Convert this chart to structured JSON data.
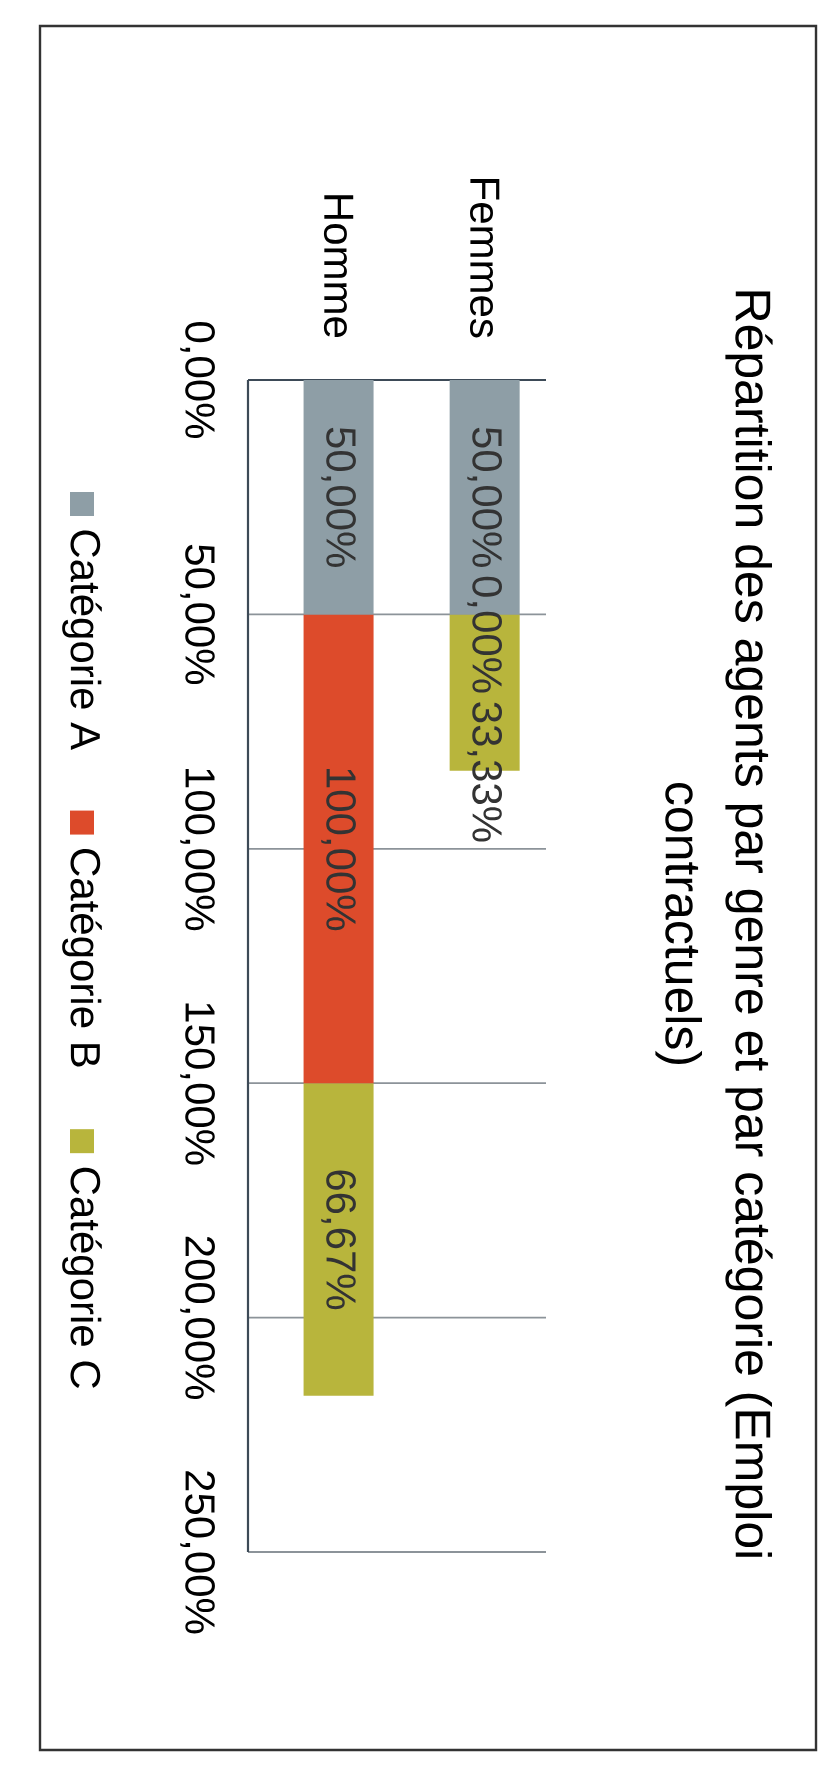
{
  "chart_data": {
    "type": "bar",
    "stacked": true,
    "title": "Répartition des agents par genre et par catégorie (Emploi contractuels)",
    "categories": [
      "Homme",
      "Femmes"
    ],
    "series": [
      {
        "name": "Catégorie A",
        "color": "#8e9ea6",
        "values": [
          50,
          50
        ],
        "value_labels": [
          "50,00%",
          "50,00%"
        ]
      },
      {
        "name": "Catégorie B",
        "color": "#dd4b2b",
        "values": [
          100,
          0
        ],
        "value_labels": [
          "100,00%",
          "0,00%"
        ]
      },
      {
        "name": "Catégorie C",
        "color": "#b8b53c",
        "values": [
          66.67,
          33.33
        ],
        "value_labels": [
          "66,67%",
          "33,33%"
        ]
      }
    ],
    "ylim": [
      250,
      0
    ],
    "yticks": [
      {
        "value": 0,
        "label": "0,00%"
      },
      {
        "value": 50,
        "label": "50,00%"
      },
      {
        "value": 100,
        "label": "100,00%"
      },
      {
        "value": 150,
        "label": "150,00%"
      },
      {
        "value": 200,
        "label": "200,00%"
      },
      {
        "value": 250,
        "label": "250,00%"
      }
    ],
    "grid": "y",
    "legend": "left"
  }
}
